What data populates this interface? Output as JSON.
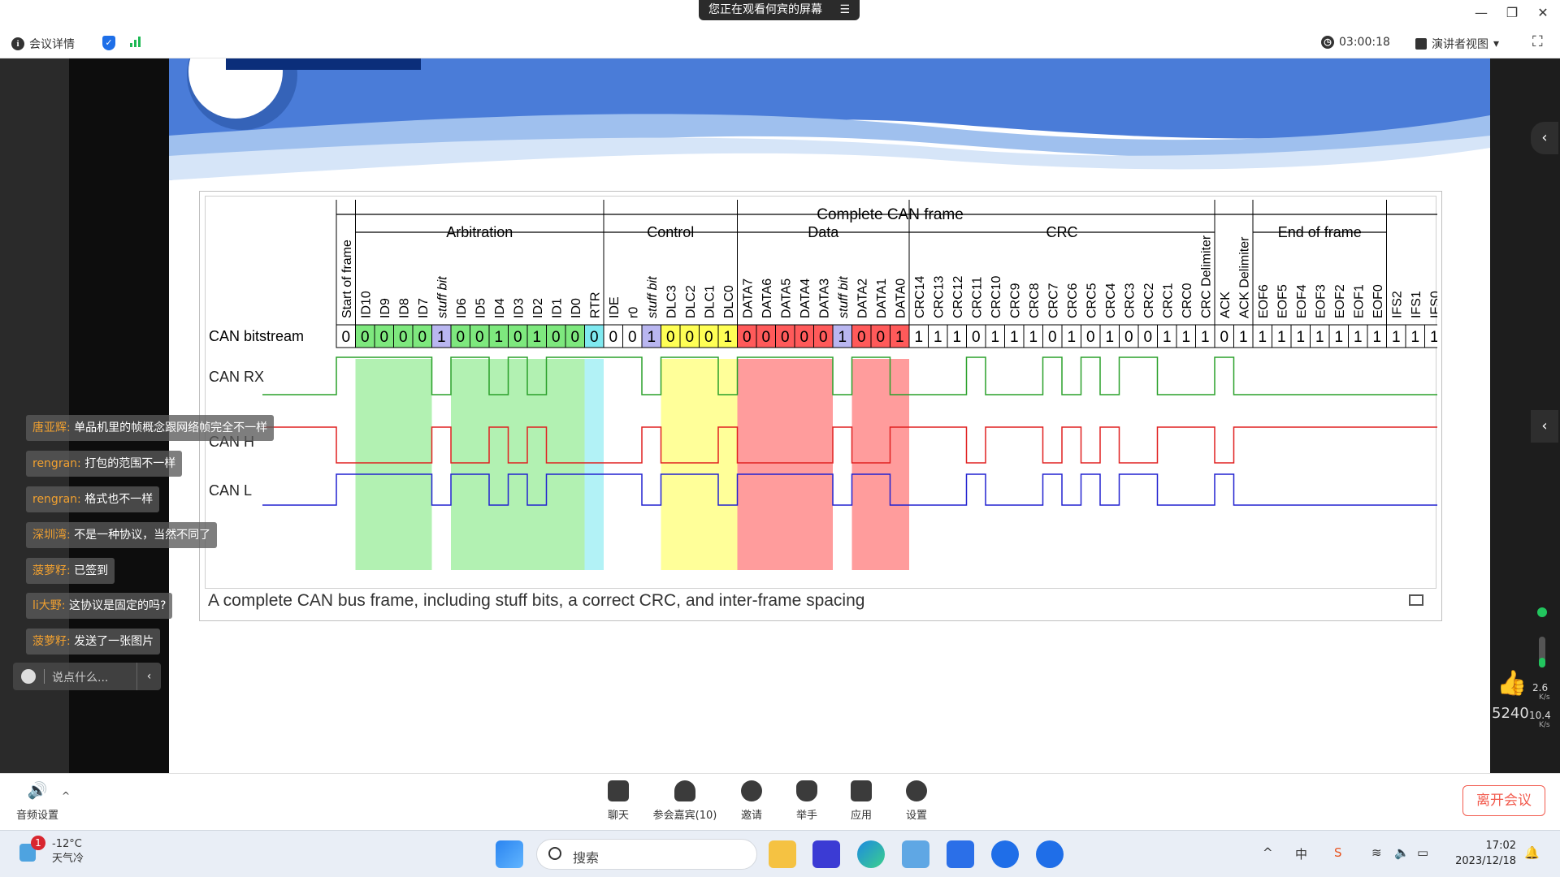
{
  "share_banner": {
    "text": "您正在观看何宾的屏幕",
    "menu_icon": "menu-icon"
  },
  "meeting_bar": {
    "details_label": "会议详情",
    "timer": "03:00:18",
    "view_label": "演讲者视图"
  },
  "slide": {
    "caption": "A complete CAN bus frame, including stuff bits, a correct CRC, and inter-frame spacing",
    "diagram": {
      "top_label": "Complete CAN frame",
      "sections": [
        "Arbitration",
        "Control",
        "Data",
        "CRC",
        "End of frame"
      ],
      "fields": [
        "Start of frame",
        "ID10",
        "ID9",
        "ID8",
        "ID7",
        "stuff bit",
        "ID6",
        "ID5",
        "ID4",
        "ID3",
        "ID2",
        "ID1",
        "ID0",
        "RTR",
        "IDE",
        "r0",
        "stuff bit",
        "DLC3",
        "DLC2",
        "DLC1",
        "DLC0",
        "DATA7",
        "DATA6",
        "DATA5",
        "DATA4",
        "DATA3",
        "stuff bit",
        "DATA2",
        "DATA1",
        "DATA0",
        "CRC14",
        "CRC13",
        "CRC12",
        "CRC11",
        "CRC10",
        "CRC9",
        "CRC8",
        "CRC7",
        "CRC6",
        "CRC5",
        "CRC4",
        "CRC3",
        "CRC2",
        "CRC1",
        "CRC0",
        "CRC Delimiter",
        "ACK",
        "ACK Delimiter",
        "EOF6",
        "EOF5",
        "EOF4",
        "EOF3",
        "EOF2",
        "EOF1",
        "EOF0",
        "IFS2",
        "IFS1",
        "IFS0"
      ],
      "bitstream_label": "CAN bitstream",
      "bits": [
        "0",
        "0",
        "0",
        "0",
        "0",
        "1",
        "0",
        "0",
        "1",
        "0",
        "1",
        "0",
        "0",
        "0",
        "0",
        "0",
        "1",
        "0",
        "0",
        "0",
        "1",
        "0",
        "0",
        "0",
        "0",
        "0",
        "1",
        "0",
        "0",
        "1",
        "1",
        "1",
        "1",
        "0",
        "1",
        "1",
        "1",
        "0",
        "1",
        "0",
        "1",
        "0",
        "0",
        "1",
        "1",
        "1",
        "0",
        "1",
        "1",
        "1",
        "1",
        "1",
        "1",
        "1",
        "1",
        "1",
        "1",
        "1"
      ],
      "signal_labels": [
        "CAN RX",
        "CAN H",
        "CAN L"
      ]
    }
  },
  "chat": {
    "messages": [
      {
        "name": "唐亚辉:",
        "text": "单品机里的帧概念跟网络帧完全不一样"
      },
      {
        "name": "rengran:",
        "text": "打包的范围不一样"
      },
      {
        "name": "rengran:",
        "text": "格式也不一样"
      },
      {
        "name": "深圳湾:",
        "text": "不是一种协议，当然不同了"
      },
      {
        "name": "菠萝籽:",
        "text": "已签到"
      },
      {
        "name": "li大野:",
        "text": "这协议是固定的吗?"
      },
      {
        "name": "菠萝籽:",
        "text": "发送了一张图片"
      }
    ],
    "input_placeholder": "说点什么..."
  },
  "side": {
    "likes": "5240",
    "up_rate": "2.6",
    "down_rate": "10.4",
    "unit": "K/s"
  },
  "controls": {
    "audio": "音频设置",
    "chat": "聊天",
    "participants": "参会嘉宾(10)",
    "invite": "邀请",
    "raise_hand": "举手",
    "apps": "应用",
    "settings": "设置",
    "leave": "离开会议"
  },
  "taskbar": {
    "temperature": "-12°C",
    "weather": "天气冷",
    "weather_badge": "1",
    "search_placeholder": "搜索",
    "time": "17:02",
    "date": "2023/12/18",
    "ime": "中"
  },
  "colors": {
    "green": "#7ee87e",
    "yellow": "#ffff55",
    "red": "#ff5a5a",
    "cyan": "#7fe9f0",
    "lilac": "#b9b6f0",
    "leave": "#f25b4e"
  }
}
